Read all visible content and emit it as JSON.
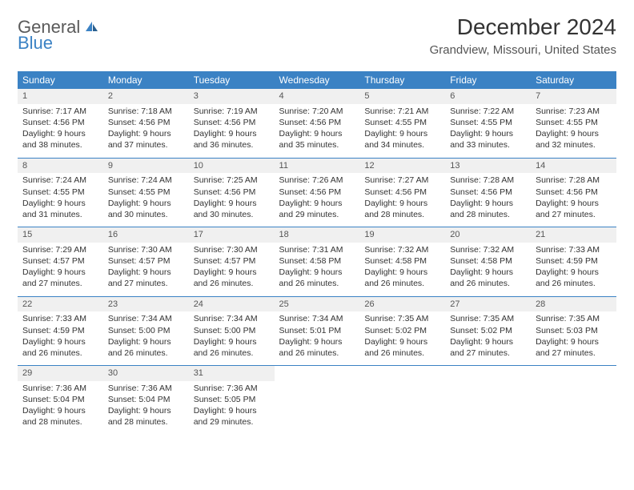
{
  "brand": {
    "text1": "General",
    "text2": "Blue",
    "color1": "#5a5a5a",
    "color2": "#3b82c4"
  },
  "title": "December 2024",
  "location": "Grandview, Missouri, United States",
  "theme": {
    "header_bg": "#3b82c4",
    "header_fg": "#ffffff",
    "daynum_bg": "#f0f0f0",
    "border_color": "#3b82c4",
    "page_bg": "#ffffff",
    "text_color": "#333333"
  },
  "columns": [
    "Sunday",
    "Monday",
    "Tuesday",
    "Wednesday",
    "Thursday",
    "Friday",
    "Saturday"
  ],
  "weeks": [
    [
      {
        "n": "1",
        "sr": "Sunrise: 7:17 AM",
        "ss": "Sunset: 4:56 PM",
        "d1": "Daylight: 9 hours",
        "d2": "and 38 minutes."
      },
      {
        "n": "2",
        "sr": "Sunrise: 7:18 AM",
        "ss": "Sunset: 4:56 PM",
        "d1": "Daylight: 9 hours",
        "d2": "and 37 minutes."
      },
      {
        "n": "3",
        "sr": "Sunrise: 7:19 AM",
        "ss": "Sunset: 4:56 PM",
        "d1": "Daylight: 9 hours",
        "d2": "and 36 minutes."
      },
      {
        "n": "4",
        "sr": "Sunrise: 7:20 AM",
        "ss": "Sunset: 4:56 PM",
        "d1": "Daylight: 9 hours",
        "d2": "and 35 minutes."
      },
      {
        "n": "5",
        "sr": "Sunrise: 7:21 AM",
        "ss": "Sunset: 4:55 PM",
        "d1": "Daylight: 9 hours",
        "d2": "and 34 minutes."
      },
      {
        "n": "6",
        "sr": "Sunrise: 7:22 AM",
        "ss": "Sunset: 4:55 PM",
        "d1": "Daylight: 9 hours",
        "d2": "and 33 minutes."
      },
      {
        "n": "7",
        "sr": "Sunrise: 7:23 AM",
        "ss": "Sunset: 4:55 PM",
        "d1": "Daylight: 9 hours",
        "d2": "and 32 minutes."
      }
    ],
    [
      {
        "n": "8",
        "sr": "Sunrise: 7:24 AM",
        "ss": "Sunset: 4:55 PM",
        "d1": "Daylight: 9 hours",
        "d2": "and 31 minutes."
      },
      {
        "n": "9",
        "sr": "Sunrise: 7:24 AM",
        "ss": "Sunset: 4:55 PM",
        "d1": "Daylight: 9 hours",
        "d2": "and 30 minutes."
      },
      {
        "n": "10",
        "sr": "Sunrise: 7:25 AM",
        "ss": "Sunset: 4:56 PM",
        "d1": "Daylight: 9 hours",
        "d2": "and 30 minutes."
      },
      {
        "n": "11",
        "sr": "Sunrise: 7:26 AM",
        "ss": "Sunset: 4:56 PM",
        "d1": "Daylight: 9 hours",
        "d2": "and 29 minutes."
      },
      {
        "n": "12",
        "sr": "Sunrise: 7:27 AM",
        "ss": "Sunset: 4:56 PM",
        "d1": "Daylight: 9 hours",
        "d2": "and 28 minutes."
      },
      {
        "n": "13",
        "sr": "Sunrise: 7:28 AM",
        "ss": "Sunset: 4:56 PM",
        "d1": "Daylight: 9 hours",
        "d2": "and 28 minutes."
      },
      {
        "n": "14",
        "sr": "Sunrise: 7:28 AM",
        "ss": "Sunset: 4:56 PM",
        "d1": "Daylight: 9 hours",
        "d2": "and 27 minutes."
      }
    ],
    [
      {
        "n": "15",
        "sr": "Sunrise: 7:29 AM",
        "ss": "Sunset: 4:57 PM",
        "d1": "Daylight: 9 hours",
        "d2": "and 27 minutes."
      },
      {
        "n": "16",
        "sr": "Sunrise: 7:30 AM",
        "ss": "Sunset: 4:57 PM",
        "d1": "Daylight: 9 hours",
        "d2": "and 27 minutes."
      },
      {
        "n": "17",
        "sr": "Sunrise: 7:30 AM",
        "ss": "Sunset: 4:57 PM",
        "d1": "Daylight: 9 hours",
        "d2": "and 26 minutes."
      },
      {
        "n": "18",
        "sr": "Sunrise: 7:31 AM",
        "ss": "Sunset: 4:58 PM",
        "d1": "Daylight: 9 hours",
        "d2": "and 26 minutes."
      },
      {
        "n": "19",
        "sr": "Sunrise: 7:32 AM",
        "ss": "Sunset: 4:58 PM",
        "d1": "Daylight: 9 hours",
        "d2": "and 26 minutes."
      },
      {
        "n": "20",
        "sr": "Sunrise: 7:32 AM",
        "ss": "Sunset: 4:58 PM",
        "d1": "Daylight: 9 hours",
        "d2": "and 26 minutes."
      },
      {
        "n": "21",
        "sr": "Sunrise: 7:33 AM",
        "ss": "Sunset: 4:59 PM",
        "d1": "Daylight: 9 hours",
        "d2": "and 26 minutes."
      }
    ],
    [
      {
        "n": "22",
        "sr": "Sunrise: 7:33 AM",
        "ss": "Sunset: 4:59 PM",
        "d1": "Daylight: 9 hours",
        "d2": "and 26 minutes."
      },
      {
        "n": "23",
        "sr": "Sunrise: 7:34 AM",
        "ss": "Sunset: 5:00 PM",
        "d1": "Daylight: 9 hours",
        "d2": "and 26 minutes."
      },
      {
        "n": "24",
        "sr": "Sunrise: 7:34 AM",
        "ss": "Sunset: 5:00 PM",
        "d1": "Daylight: 9 hours",
        "d2": "and 26 minutes."
      },
      {
        "n": "25",
        "sr": "Sunrise: 7:34 AM",
        "ss": "Sunset: 5:01 PM",
        "d1": "Daylight: 9 hours",
        "d2": "and 26 minutes."
      },
      {
        "n": "26",
        "sr": "Sunrise: 7:35 AM",
        "ss": "Sunset: 5:02 PM",
        "d1": "Daylight: 9 hours",
        "d2": "and 26 minutes."
      },
      {
        "n": "27",
        "sr": "Sunrise: 7:35 AM",
        "ss": "Sunset: 5:02 PM",
        "d1": "Daylight: 9 hours",
        "d2": "and 27 minutes."
      },
      {
        "n": "28",
        "sr": "Sunrise: 7:35 AM",
        "ss": "Sunset: 5:03 PM",
        "d1": "Daylight: 9 hours",
        "d2": "and 27 minutes."
      }
    ],
    [
      {
        "n": "29",
        "sr": "Sunrise: 7:36 AM",
        "ss": "Sunset: 5:04 PM",
        "d1": "Daylight: 9 hours",
        "d2": "and 28 minutes."
      },
      {
        "n": "30",
        "sr": "Sunrise: 7:36 AM",
        "ss": "Sunset: 5:04 PM",
        "d1": "Daylight: 9 hours",
        "d2": "and 28 minutes."
      },
      {
        "n": "31",
        "sr": "Sunrise: 7:36 AM",
        "ss": "Sunset: 5:05 PM",
        "d1": "Daylight: 9 hours",
        "d2": "and 29 minutes."
      },
      null,
      null,
      null,
      null
    ]
  ]
}
